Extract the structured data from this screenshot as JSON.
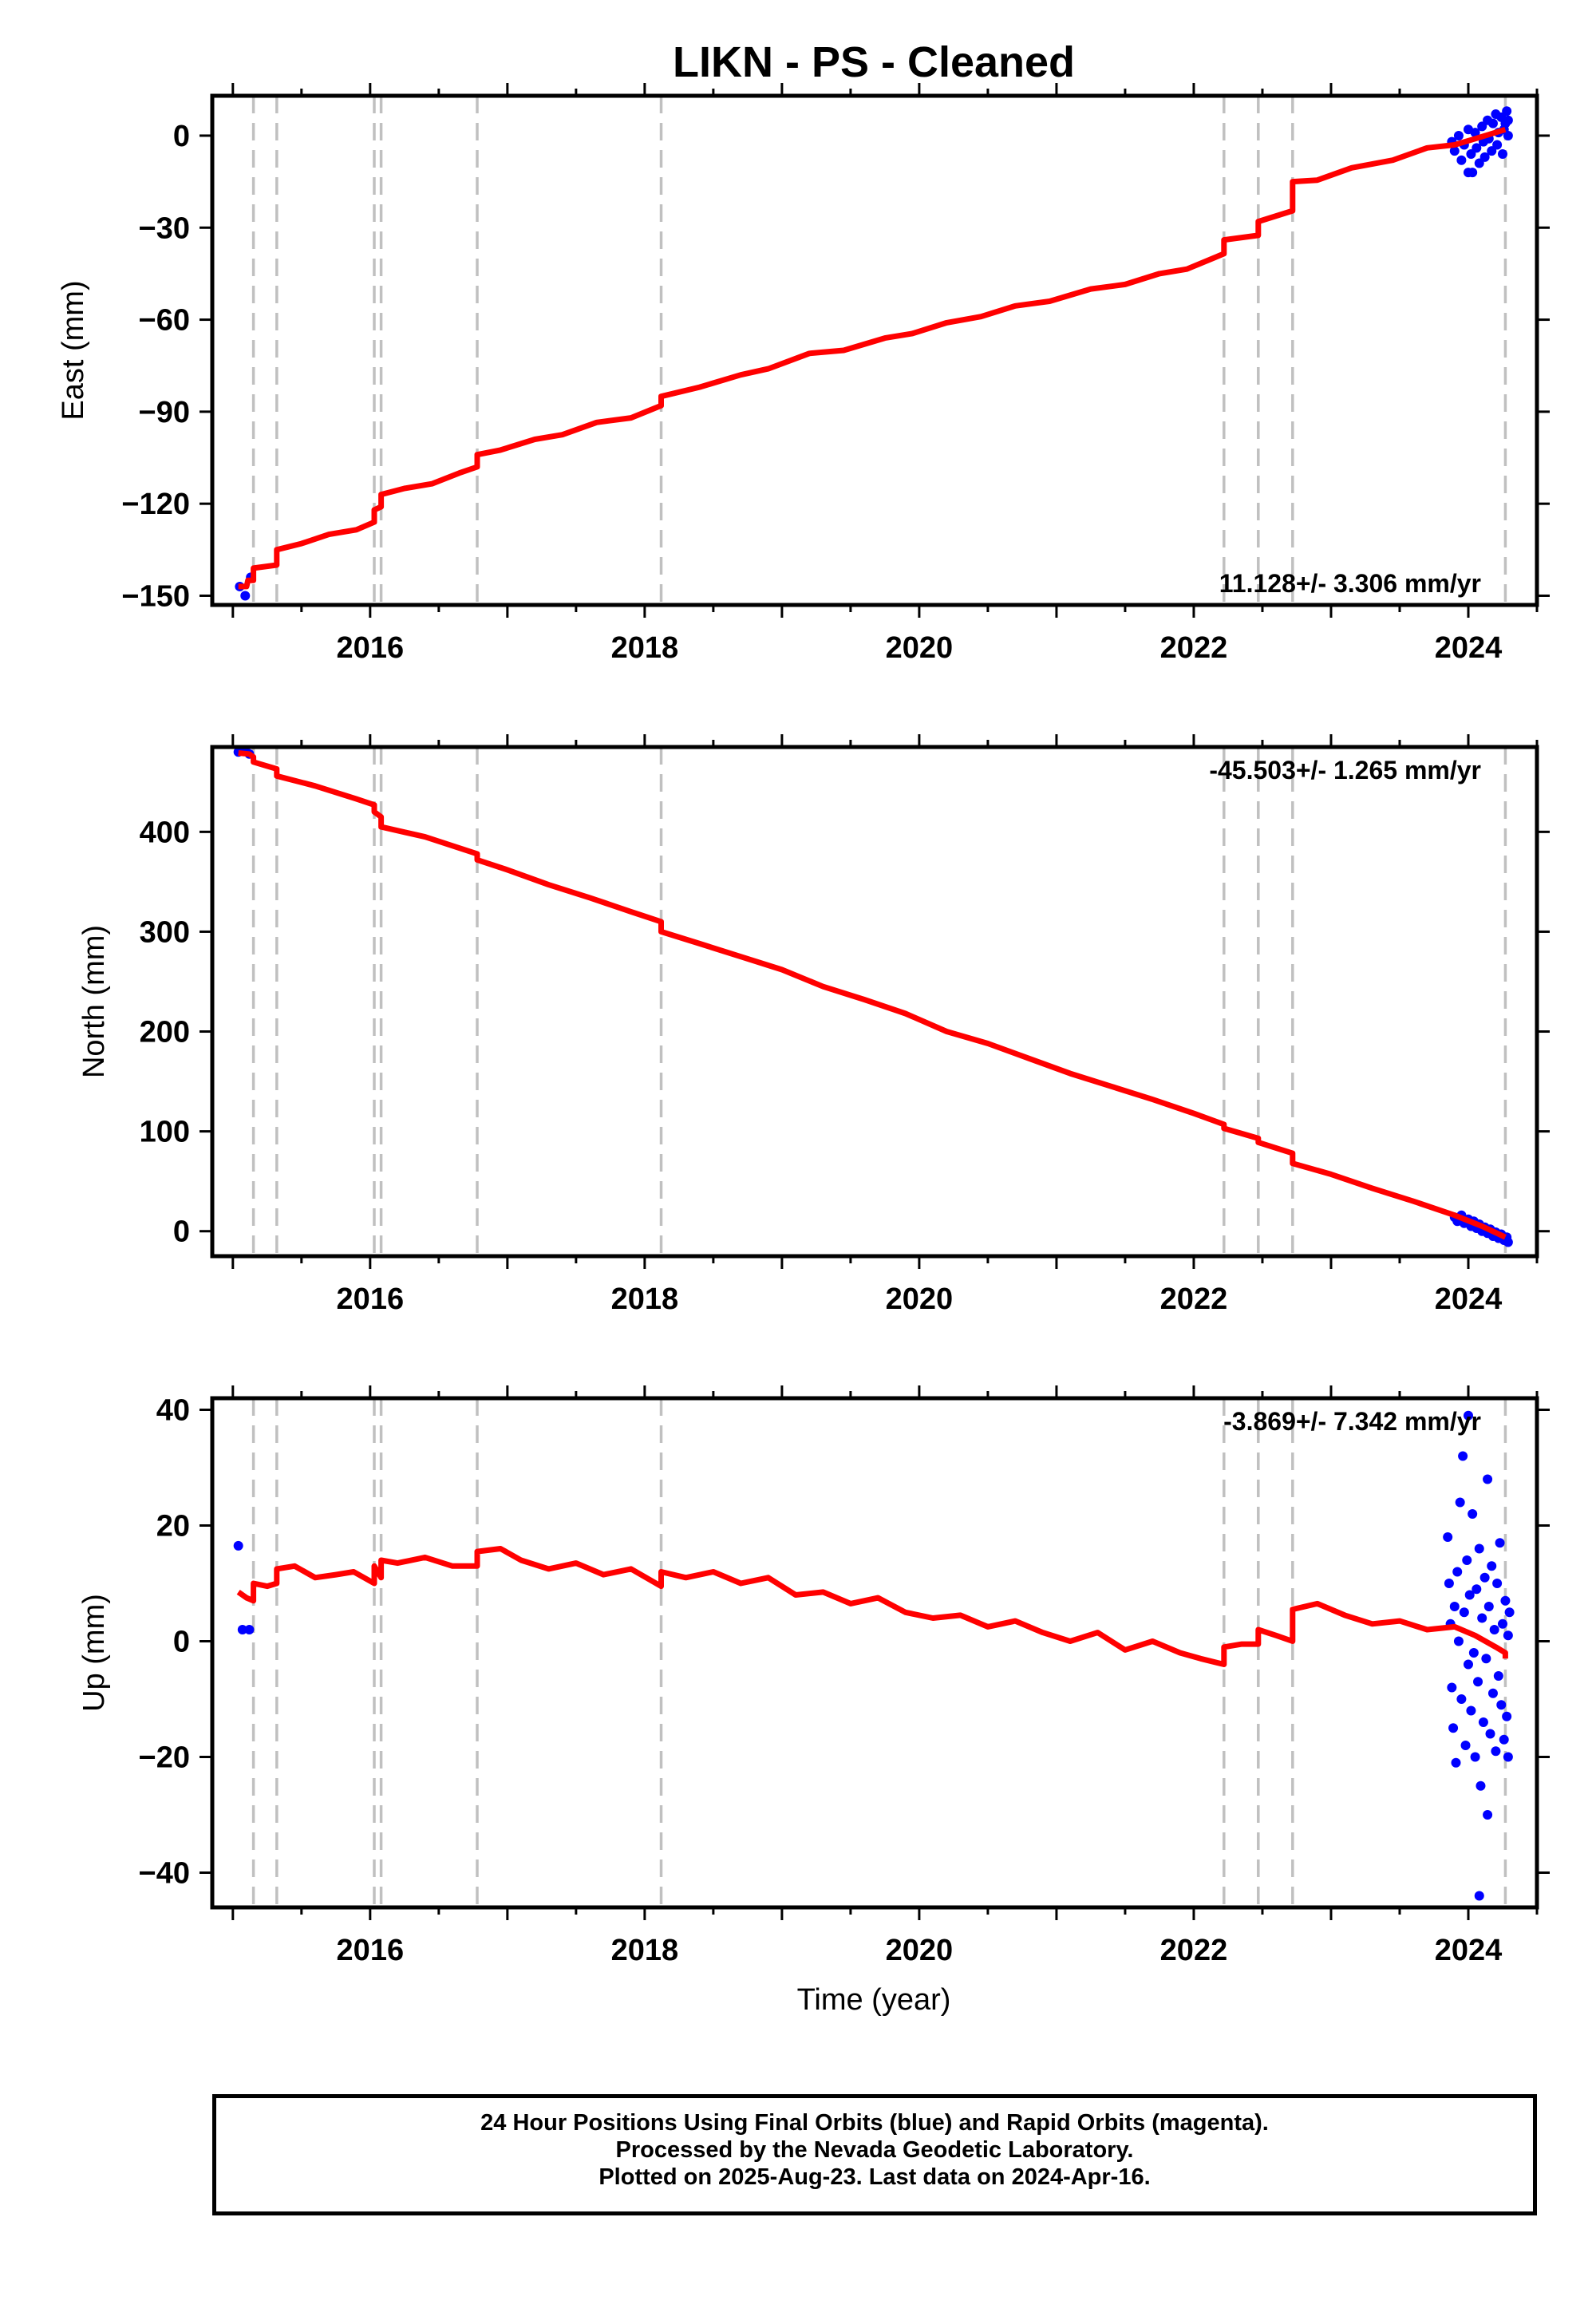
{
  "title": "LIKN  - PS - Cleaned",
  "x_label": "Time (year)",
  "colors": {
    "model": "#ff0000",
    "final": "#0000ff",
    "breaks": "#c0c0c0",
    "axis": "#000000"
  },
  "footer": {
    "line1": "24 Hour Positions Using Final Orbits (blue) and Rapid Orbits (magenta).",
    "line2": "Processed by the Nevada Geodetic Laboratory.",
    "line3": "Plotted on 2025-Aug-23. Last data on 2024-Apr-16."
  },
  "chart_data": [
    {
      "type": "line",
      "ylabel": "East (mm)",
      "rate_label": "11.128+/- 3.306 mm/yr",
      "rate_position": "bottom-right",
      "xlim": [
        2014.85,
        2024.5
      ],
      "ylim": [
        -153,
        13
      ],
      "xticks": [
        2016,
        2018,
        2020,
        2022,
        2024
      ],
      "yticks": [
        0,
        -30,
        -60,
        -90,
        -120,
        -150
      ],
      "breaks": [
        2015.15,
        2015.32,
        2016.03,
        2016.08,
        2016.78,
        2018.12,
        2022.22,
        2022.47,
        2022.72,
        2024.27
      ],
      "model": [
        [
          2015.04,
          -147
        ],
        [
          2015.1,
          -147
        ],
        [
          2015.11,
          -145
        ],
        [
          2015.15,
          -145
        ],
        [
          2015.15,
          -141
        ],
        [
          2015.32,
          -140
        ],
        [
          2015.32,
          -135
        ],
        [
          2015.5,
          -133
        ],
        [
          2015.7,
          -130
        ],
        [
          2015.9,
          -128.5
        ],
        [
          2016.03,
          -126
        ],
        [
          2016.03,
          -122
        ],
        [
          2016.08,
          -121
        ],
        [
          2016.08,
          -117
        ],
        [
          2016.25,
          -115
        ],
        [
          2016.45,
          -113.5
        ],
        [
          2016.65,
          -110
        ],
        [
          2016.78,
          -108
        ],
        [
          2016.78,
          -104
        ],
        [
          2016.95,
          -102.5
        ],
        [
          2017.2,
          -99
        ],
        [
          2017.4,
          -97.5
        ],
        [
          2017.65,
          -93.5
        ],
        [
          2017.9,
          -92
        ],
        [
          2018.12,
          -88
        ],
        [
          2018.12,
          -85
        ],
        [
          2018.4,
          -82
        ],
        [
          2018.7,
          -78
        ],
        [
          2018.9,
          -76
        ],
        [
          2019.2,
          -71
        ],
        [
          2019.45,
          -70
        ],
        [
          2019.75,
          -66
        ],
        [
          2019.95,
          -64.5
        ],
        [
          2020.2,
          -61
        ],
        [
          2020.45,
          -59
        ],
        [
          2020.7,
          -55.5
        ],
        [
          2020.95,
          -54
        ],
        [
          2021.25,
          -50
        ],
        [
          2021.5,
          -48.5
        ],
        [
          2021.75,
          -45
        ],
        [
          2021.95,
          -43.5
        ],
        [
          2022.22,
          -38.5
        ],
        [
          2022.22,
          -34
        ],
        [
          2022.47,
          -32.5
        ],
        [
          2022.47,
          -28
        ],
        [
          2022.72,
          -24.5
        ],
        [
          2022.72,
          -15
        ],
        [
          2022.9,
          -14.5
        ],
        [
          2023.15,
          -10.5
        ],
        [
          2023.45,
          -8
        ],
        [
          2023.7,
          -4
        ],
        [
          2023.9,
          -3
        ],
        [
          2024.05,
          -1
        ],
        [
          2024.27,
          2
        ]
      ],
      "final_points": [
        [
          2015.05,
          -147
        ],
        [
          2015.09,
          -150
        ],
        [
          2015.13,
          -144
        ],
        [
          2023.88,
          -2
        ],
        [
          2023.9,
          -5
        ],
        [
          2023.93,
          0
        ],
        [
          2023.95,
          -8
        ],
        [
          2023.97,
          -3
        ],
        [
          2024.0,
          2
        ],
        [
          2024.0,
          -12
        ],
        [
          2024.02,
          -6
        ],
        [
          2024.03,
          -12
        ],
        [
          2024.05,
          1
        ],
        [
          2024.06,
          -4
        ],
        [
          2024.08,
          -9
        ],
        [
          2024.1,
          3
        ],
        [
          2024.11,
          -2
        ],
        [
          2024.12,
          -7
        ],
        [
          2024.14,
          5
        ],
        [
          2024.15,
          -1
        ],
        [
          2024.17,
          -5
        ],
        [
          2024.18,
          4
        ],
        [
          2024.2,
          7
        ],
        [
          2024.21,
          -3
        ],
        [
          2024.22,
          1
        ],
        [
          2024.24,
          6
        ],
        [
          2024.25,
          -6
        ],
        [
          2024.26,
          2
        ],
        [
          2024.27,
          4
        ],
        [
          2024.28,
          8
        ],
        [
          2024.29,
          0
        ],
        [
          2024.29,
          5
        ]
      ]
    },
    {
      "type": "line",
      "ylabel": "North (mm)",
      "rate_label": "-45.503+/- 1.265 mm/yr",
      "rate_position": "top-right",
      "xlim": [
        2014.85,
        2024.5
      ],
      "ylim": [
        -25,
        485
      ],
      "xticks": [
        2016,
        2018,
        2020,
        2022,
        2024
      ],
      "yticks": [
        0,
        100,
        200,
        300,
        400
      ],
      "breaks": [
        2015.15,
        2015.32,
        2016.03,
        2016.08,
        2016.78,
        2018.12,
        2022.22,
        2022.47,
        2022.72,
        2024.27
      ],
      "model": [
        [
          2015.04,
          479
        ],
        [
          2015.12,
          478
        ],
        [
          2015.15,
          475
        ],
        [
          2015.15,
          470
        ],
        [
          2015.32,
          463
        ],
        [
          2015.32,
          456
        ],
        [
          2015.6,
          446
        ],
        [
          2015.9,
          433
        ],
        [
          2016.03,
          427
        ],
        [
          2016.03,
          420
        ],
        [
          2016.08,
          415
        ],
        [
          2016.08,
          405
        ],
        [
          2016.4,
          395
        ],
        [
          2016.78,
          378
        ],
        [
          2016.78,
          372
        ],
        [
          2017.0,
          362
        ],
        [
          2017.3,
          347
        ],
        [
          2017.6,
          334
        ],
        [
          2017.9,
          320
        ],
        [
          2018.12,
          310
        ],
        [
          2018.12,
          300
        ],
        [
          2018.4,
          288
        ],
        [
          2018.7,
          275
        ],
        [
          2019.0,
          262
        ],
        [
          2019.3,
          245
        ],
        [
          2019.6,
          232
        ],
        [
          2019.9,
          218
        ],
        [
          2020.2,
          200
        ],
        [
          2020.5,
          188
        ],
        [
          2020.8,
          173
        ],
        [
          2021.1,
          158
        ],
        [
          2021.4,
          145
        ],
        [
          2021.7,
          132
        ],
        [
          2022.0,
          118
        ],
        [
          2022.22,
          107
        ],
        [
          2022.22,
          103
        ],
        [
          2022.47,
          93
        ],
        [
          2022.47,
          89
        ],
        [
          2022.72,
          78
        ],
        [
          2022.72,
          68
        ],
        [
          2023.0,
          57
        ],
        [
          2023.3,
          43
        ],
        [
          2023.6,
          30
        ],
        [
          2023.9,
          16
        ],
        [
          2024.1,
          5
        ],
        [
          2024.27,
          -6
        ]
      ],
      "final_points": [
        [
          2015.04,
          480
        ],
        [
          2015.09,
          481
        ],
        [
          2015.12,
          478
        ],
        [
          2023.9,
          14
        ],
        [
          2023.92,
          10
        ],
        [
          2023.95,
          16
        ],
        [
          2023.97,
          8
        ],
        [
          2024.0,
          12
        ],
        [
          2024.02,
          5
        ],
        [
          2024.04,
          10
        ],
        [
          2024.06,
          3
        ],
        [
          2024.08,
          7
        ],
        [
          2024.1,
          0
        ],
        [
          2024.12,
          4
        ],
        [
          2024.14,
          -2
        ],
        [
          2024.16,
          2
        ],
        [
          2024.18,
          -5
        ],
        [
          2024.2,
          -1
        ],
        [
          2024.22,
          -7
        ],
        [
          2024.24,
          -3
        ],
        [
          2024.26,
          -9
        ],
        [
          2024.28,
          -6
        ],
        [
          2024.29,
          -11
        ]
      ]
    },
    {
      "type": "line",
      "ylabel": "Up (mm)",
      "rate_label": "-3.869+/- 7.342 mm/yr",
      "rate_position": "top-right",
      "xlim": [
        2014.85,
        2024.5
      ],
      "ylim": [
        -46,
        42
      ],
      "xticks": [
        2016,
        2018,
        2020,
        2022,
        2024
      ],
      "yticks": [
        40,
        20,
        0,
        -20,
        -40
      ],
      "breaks": [
        2015.15,
        2015.32,
        2016.03,
        2016.08,
        2016.78,
        2018.12,
        2022.22,
        2022.47,
        2022.72,
        2024.27
      ],
      "model": [
        [
          2015.04,
          8.5
        ],
        [
          2015.1,
          7.5
        ],
        [
          2015.15,
          7
        ],
        [
          2015.15,
          10
        ],
        [
          2015.25,
          9.5
        ],
        [
          2015.32,
          10
        ],
        [
          2015.32,
          12.5
        ],
        [
          2015.45,
          13
        ],
        [
          2015.6,
          11
        ],
        [
          2015.75,
          11.5
        ],
        [
          2015.88,
          12
        ],
        [
          2016.03,
          10
        ],
        [
          2016.03,
          13
        ],
        [
          2016.08,
          11
        ],
        [
          2016.08,
          14
        ],
        [
          2016.2,
          13.5
        ],
        [
          2016.4,
          14.5
        ],
        [
          2016.6,
          13
        ],
        [
          2016.78,
          13
        ],
        [
          2016.78,
          15.5
        ],
        [
          2016.95,
          16
        ],
        [
          2017.1,
          14
        ],
        [
          2017.3,
          12.5
        ],
        [
          2017.5,
          13.5
        ],
        [
          2017.7,
          11.5
        ],
        [
          2017.9,
          12.5
        ],
        [
          2018.12,
          9.5
        ],
        [
          2018.12,
          12
        ],
        [
          2018.3,
          11
        ],
        [
          2018.5,
          12
        ],
        [
          2018.7,
          10
        ],
        [
          2018.9,
          11
        ],
        [
          2019.1,
          8
        ],
        [
          2019.3,
          8.5
        ],
        [
          2019.5,
          6.5
        ],
        [
          2019.7,
          7.5
        ],
        [
          2019.9,
          5
        ],
        [
          2020.1,
          4
        ],
        [
          2020.3,
          4.5
        ],
        [
          2020.5,
          2.5
        ],
        [
          2020.7,
          3.5
        ],
        [
          2020.9,
          1.5
        ],
        [
          2021.1,
          0
        ],
        [
          2021.3,
          1.5
        ],
        [
          2021.5,
          -1.5
        ],
        [
          2021.7,
          0
        ],
        [
          2021.9,
          -2
        ],
        [
          2022.05,
          -3
        ],
        [
          2022.22,
          -4
        ],
        [
          2022.22,
          -1
        ],
        [
          2022.35,
          -0.5
        ],
        [
          2022.47,
          -0.5
        ],
        [
          2022.47,
          2
        ],
        [
          2022.6,
          1
        ],
        [
          2022.72,
          0
        ],
        [
          2022.72,
          5.5
        ],
        [
          2022.9,
          6.5
        ],
        [
          2023.1,
          4.5
        ],
        [
          2023.3,
          3
        ],
        [
          2023.5,
          3.5
        ],
        [
          2023.7,
          2
        ],
        [
          2023.9,
          2.5
        ],
        [
          2024.05,
          1
        ],
        [
          2024.2,
          -1
        ],
        [
          2024.27,
          -2
        ],
        [
          2024.27,
          -3
        ]
      ],
      "final_points": [
        [
          2015.04,
          16.5
        ],
        [
          2015.07,
          2
        ],
        [
          2015.12,
          2
        ],
        [
          2023.85,
          18
        ],
        [
          2023.86,
          10
        ],
        [
          2023.87,
          3
        ],
        [
          2023.88,
          -8
        ],
        [
          2023.89,
          -15
        ],
        [
          2023.9,
          6
        ],
        [
          2023.91,
          -21
        ],
        [
          2023.92,
          12
        ],
        [
          2023.93,
          0
        ],
        [
          2023.94,
          24
        ],
        [
          2023.95,
          -10
        ],
        [
          2023.96,
          32
        ],
        [
          2023.97,
          5
        ],
        [
          2023.98,
          -18
        ],
        [
          2023.99,
          14
        ],
        [
          2024.0,
          39
        ],
        [
          2024.0,
          -4
        ],
        [
          2024.01,
          8
        ],
        [
          2024.02,
          -12
        ],
        [
          2024.03,
          22
        ],
        [
          2024.04,
          -2
        ],
        [
          2024.05,
          -20
        ],
        [
          2024.06,
          9
        ],
        [
          2024.07,
          -7
        ],
        [
          2024.08,
          16
        ],
        [
          2024.09,
          -25
        ],
        [
          2024.1,
          4
        ],
        [
          2024.11,
          -14
        ],
        [
          2024.12,
          11
        ],
        [
          2024.13,
          -3
        ],
        [
          2024.14,
          28
        ],
        [
          2024.14,
          -30
        ],
        [
          2024.15,
          6
        ],
        [
          2024.16,
          -16
        ],
        [
          2024.17,
          13
        ],
        [
          2024.18,
          -9
        ],
        [
          2024.19,
          2
        ],
        [
          2024.2,
          -19
        ],
        [
          2024.21,
          10
        ],
        [
          2024.22,
          -6
        ],
        [
          2024.23,
          17
        ],
        [
          2024.24,
          -11
        ],
        [
          2024.25,
          3
        ],
        [
          2024.26,
          -17
        ],
        [
          2024.27,
          7
        ],
        [
          2024.28,
          -13
        ],
        [
          2024.29,
          1
        ],
        [
          2024.29,
          -20
        ],
        [
          2024.3,
          5
        ],
        [
          2024.08,
          -44
        ]
      ]
    }
  ]
}
